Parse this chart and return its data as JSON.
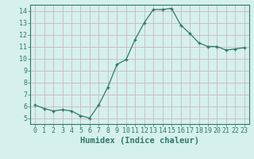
{
  "x": [
    0,
    1,
    2,
    3,
    4,
    5,
    6,
    7,
    8,
    9,
    10,
    11,
    12,
    13,
    14,
    15,
    16,
    17,
    18,
    19,
    20,
    21,
    22,
    23
  ],
  "y": [
    6.1,
    5.8,
    5.6,
    5.7,
    5.6,
    5.2,
    5.0,
    6.1,
    7.6,
    9.5,
    9.9,
    11.6,
    13.0,
    14.1,
    14.1,
    14.2,
    12.8,
    12.1,
    11.3,
    11.0,
    11.0,
    10.7,
    10.8,
    10.9
  ],
  "line_color": "#2d7a68",
  "marker": "+",
  "bg_color": "#d6f0eb",
  "grid_color": "#c8b8c0",
  "xlabel": "Humidex (Indice chaleur)",
  "xlim": [
    -0.5,
    23.5
  ],
  "ylim": [
    4.5,
    14.5
  ],
  "xticks": [
    0,
    1,
    2,
    3,
    4,
    5,
    6,
    7,
    8,
    9,
    10,
    11,
    12,
    13,
    14,
    15,
    16,
    17,
    18,
    19,
    20,
    21,
    22,
    23
  ],
  "yticks": [
    5,
    6,
    7,
    8,
    9,
    10,
    11,
    12,
    13,
    14
  ],
  "tick_color": "#2d7a68",
  "font_color": "#2d7a68",
  "axis_color": "#2d7a68",
  "font_size": 6.0,
  "label_font_size": 7.5
}
